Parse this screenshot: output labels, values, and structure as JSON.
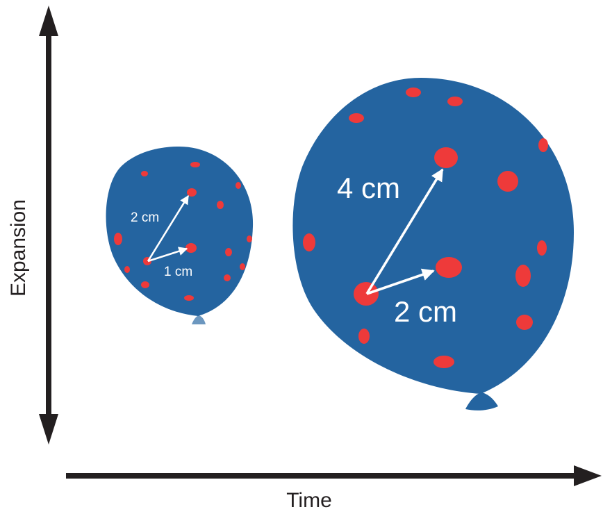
{
  "axes": {
    "x_label": "Time",
    "y_label": "Expansion"
  },
  "colors": {
    "balloon": "#2464a0",
    "spot": "#ee3a3a",
    "knot_small": "#6c97bf",
    "arrow": "#ffffff",
    "axis": "#231f20"
  },
  "small_balloon": {
    "distance_far": "2 cm",
    "distance_near": "1 cm"
  },
  "large_balloon": {
    "distance_far": "4 cm",
    "distance_near": "2 cm"
  }
}
